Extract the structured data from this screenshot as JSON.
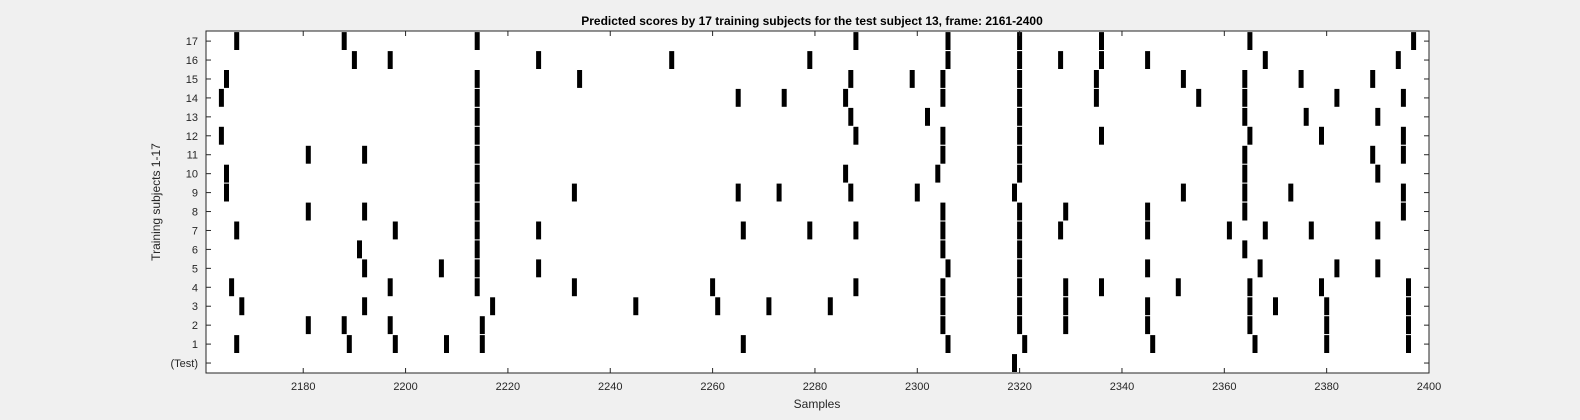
{
  "chart_data": {
    "type": "scatter",
    "title": "Predicted scores by 17 training subjects for the test subject 13, frame: 2161-2400",
    "xlabel": "Samples",
    "ylabel": "Training subjects 1-17",
    "xlim": [
      2161,
      2400
    ],
    "x_ticks": [
      2180,
      2200,
      2220,
      2240,
      2260,
      2280,
      2300,
      2320,
      2340,
      2360,
      2380,
      2400
    ],
    "y_ticks": [
      {
        "value": 0,
        "label": "(Test)"
      },
      {
        "value": 1,
        "label": "1"
      },
      {
        "value": 2,
        "label": "2"
      },
      {
        "value": 3,
        "label": "3"
      },
      {
        "value": 4,
        "label": "4"
      },
      {
        "value": 5,
        "label": "5"
      },
      {
        "value": 6,
        "label": "6"
      },
      {
        "value": 7,
        "label": "7"
      },
      {
        "value": 8,
        "label": "8"
      },
      {
        "value": 9,
        "label": "9"
      },
      {
        "value": 10,
        "label": "10"
      },
      {
        "value": 11,
        "label": "11"
      },
      {
        "value": 12,
        "label": "12"
      },
      {
        "value": 13,
        "label": "13"
      },
      {
        "value": 14,
        "label": "14"
      },
      {
        "value": 15,
        "label": "15"
      },
      {
        "value": 16,
        "label": "16"
      },
      {
        "value": 17,
        "label": "17"
      }
    ],
    "grid": false,
    "marker_color": "#000000",
    "rows": [
      {
        "row": 17,
        "x": [
          2167,
          2188,
          2214,
          2288,
          2306,
          2320,
          2336,
          2365,
          2397
        ]
      },
      {
        "row": 16,
        "x": [
          2190,
          2197,
          2226,
          2252,
          2279,
          2306,
          2320,
          2328,
          2336,
          2345,
          2368,
          2394
        ]
      },
      {
        "row": 15,
        "x": [
          2165,
          2214,
          2234,
          2287,
          2299,
          2305,
          2320,
          2335,
          2352,
          2364,
          2375,
          2389
        ]
      },
      {
        "row": 14,
        "x": [
          2164,
          2214,
          2265,
          2274,
          2286,
          2305,
          2320,
          2335,
          2355,
          2364,
          2382,
          2395
        ]
      },
      {
        "row": 13,
        "x": [
          2214,
          2287,
          2302,
          2320,
          2364,
          2376,
          2390
        ]
      },
      {
        "row": 12,
        "x": [
          2164,
          2214,
          2288,
          2305,
          2320,
          2336,
          2365,
          2379,
          2395
        ]
      },
      {
        "row": 11,
        "x": [
          2181,
          2192,
          2214,
          2305,
          2320,
          2364,
          2389,
          2395
        ]
      },
      {
        "row": 10,
        "x": [
          2165,
          2214,
          2286,
          2304,
          2320,
          2364,
          2390
        ]
      },
      {
        "row": 9,
        "x": [
          2165,
          2214,
          2233,
          2265,
          2273,
          2287,
          2300,
          2319,
          2352,
          2364,
          2373,
          2395
        ]
      },
      {
        "row": 8,
        "x": [
          2181,
          2192,
          2214,
          2305,
          2320,
          2329,
          2345,
          2364,
          2395
        ]
      },
      {
        "row": 7,
        "x": [
          2167,
          2198,
          2214,
          2226,
          2266,
          2279,
          2288,
          2305,
          2320,
          2328,
          2345,
          2361,
          2368,
          2377,
          2390
        ]
      },
      {
        "row": 6,
        "x": [
          2191,
          2214,
          2305,
          2320,
          2364
        ]
      },
      {
        "row": 5,
        "x": [
          2192,
          2207,
          2214,
          2226,
          2306,
          2320,
          2345,
          2367,
          2382,
          2390
        ]
      },
      {
        "row": 4,
        "x": [
          2166,
          2197,
          2214,
          2233,
          2260,
          2288,
          2305,
          2320,
          2329,
          2336,
          2351,
          2365,
          2379,
          2396
        ]
      },
      {
        "row": 3,
        "x": [
          2168,
          2192,
          2217,
          2245,
          2261,
          2271,
          2283,
          2305,
          2320,
          2329,
          2345,
          2365,
          2370,
          2380,
          2396
        ]
      },
      {
        "row": 2,
        "x": [
          2181,
          2188,
          2197,
          2215,
          2305,
          2320,
          2329,
          2345,
          2365,
          2380,
          2396
        ]
      },
      {
        "row": 1,
        "x": [
          2167,
          2189,
          2198,
          2208,
          2215,
          2266,
          2306,
          2321,
          2346,
          2366,
          2380,
          2396
        ]
      },
      {
        "row": 0,
        "x": [
          2319
        ]
      }
    ]
  }
}
